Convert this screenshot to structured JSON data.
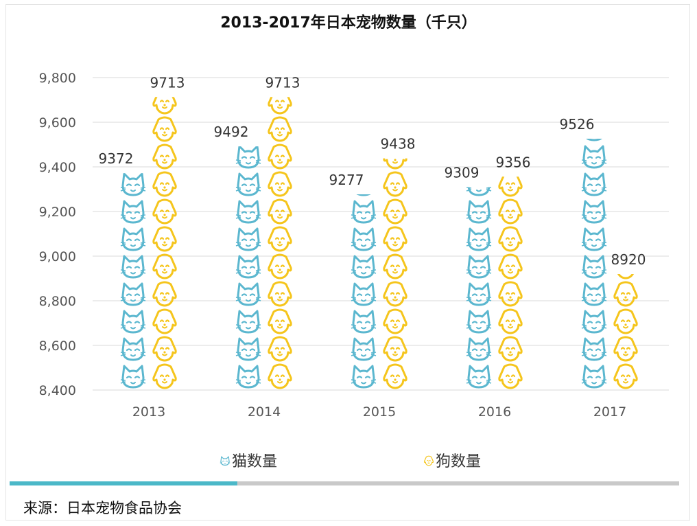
{
  "chart_data": {
    "type": "bar",
    "title": "2013-2017年日本宠物数量（千只）",
    "categories": [
      "2013",
      "2014",
      "2015",
      "2016",
      "2017"
    ],
    "series": [
      {
        "name": "猫数量",
        "values": [
          9372,
          9492,
          9277,
          9309,
          9526
        ],
        "color": "#5bb7cf",
        "icon": "cat-face-icon"
      },
      {
        "name": "狗数量",
        "values": [
          9713,
          9713,
          9438,
          9356,
          8920
        ],
        "color": "#f5c51c",
        "icon": "dog-face-icon"
      }
    ],
    "yticks": [
      "8,400",
      "8,600",
      "8,800",
      "9,000",
      "9,200",
      "9,400",
      "9,600",
      "9,800"
    ],
    "ylim": [
      8400,
      9800
    ],
    "grid": true,
    "legend_position": "bottom"
  },
  "progress_bar": {
    "fill_fraction": 0.34,
    "color": "#4bb8c8",
    "track_color": "#c9c9c9"
  },
  "source": "来源：日本宠物食品协会"
}
